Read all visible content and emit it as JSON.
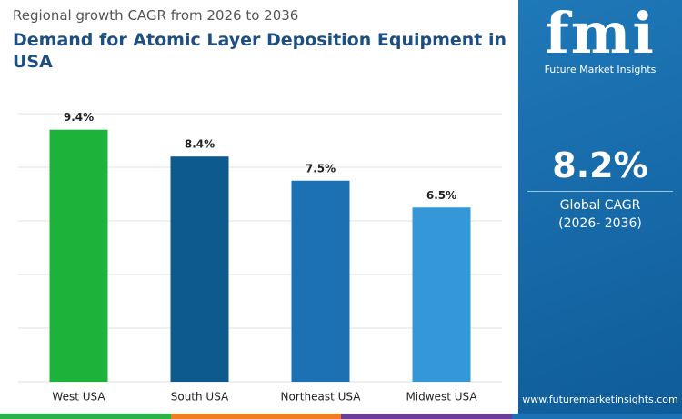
{
  "chart_data": {
    "type": "bar",
    "subtitle": "Regional growth CAGR from 2026 to 2036",
    "title": "Demand for Atomic Layer Deposition Equipment in USA",
    "categories": [
      "West USA",
      "South USA",
      "Northeast USA",
      "Midwest USA"
    ],
    "values": [
      9.4,
      8.4,
      7.5,
      6.5
    ],
    "value_labels": [
      "9.4%",
      "8.4%",
      "7.5%",
      "6.5%"
    ],
    "colors": [
      "#1db33a",
      "#0d5a8e",
      "#1b71b3",
      "#3498d8"
    ],
    "ylim": [
      0,
      10
    ],
    "yticks": [
      0,
      2,
      4,
      6,
      8,
      10
    ],
    "grid": true
  },
  "sidebar": {
    "logo": "fmi",
    "brand": "Future Market Insights",
    "stat": "8.2%",
    "stat_label": "Global CAGR",
    "stat_period": "(2026- 2036)",
    "website": "www.futuremarketinsights.com"
  }
}
